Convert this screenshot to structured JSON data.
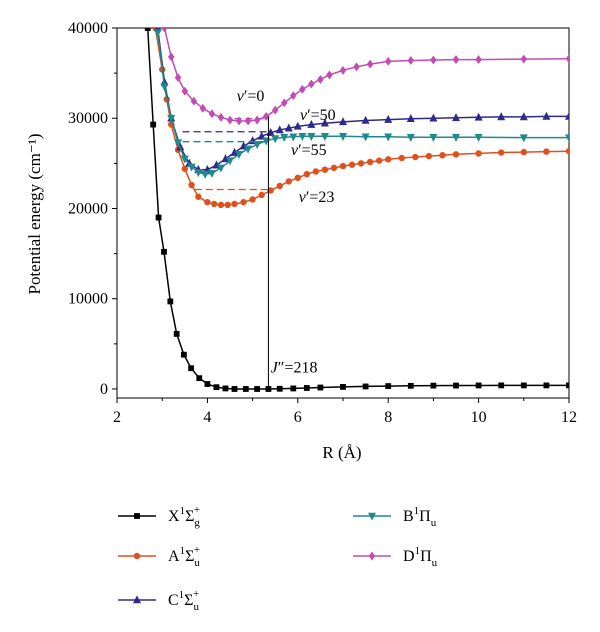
{
  "chart_data": {
    "type": "line",
    "xlabel": "R (Å)",
    "ylabel": "Potential energy (cm⁻¹)",
    "xlim": [
      2,
      12
    ],
    "ylim": [
      -1000,
      40000
    ],
    "xticks": [
      "2",
      "4",
      "6",
      "8",
      "10",
      "12"
    ],
    "yticks": [
      "0",
      "10000",
      "20000",
      "30000",
      "40000"
    ],
    "grid": false,
    "legend_position": "bottom",
    "series": [
      {
        "name": "X¹Σg⁺",
        "name_main": "X",
        "name_sup": "1",
        "name_sym": "Σ",
        "name_sub": "g",
        "name_sup2": "+",
        "color": "#000000",
        "marker": "square",
        "x": [
          2.68,
          2.8,
          2.92,
          3.04,
          3.18,
          3.32,
          3.48,
          3.64,
          3.82,
          4.0,
          4.2,
          4.4,
          4.6,
          4.85,
          5.1,
          5.35,
          5.6,
          5.9,
          6.2,
          6.5,
          7.0,
          7.5,
          8.0,
          8.5,
          9.0,
          9.5,
          10.0,
          10.5,
          11.0,
          11.5,
          12.0
        ],
        "y": [
          40000,
          29300,
          19000,
          15200,
          9700,
          6100,
          3800,
          2300,
          1200,
          550,
          200,
          60,
          0,
          0,
          0,
          0,
          20,
          60,
          110,
          160,
          230,
          280,
          320,
          350,
          370,
          380,
          390,
          395,
          395,
          395,
          400
        ]
      },
      {
        "name": "A¹Σu⁺",
        "name_main": "A",
        "name_sup": "1",
        "name_sym": "Σ",
        "name_sub": "u",
        "name_sup2": "+",
        "color": "#e0501c",
        "marker": "circle",
        "x": [
          2.85,
          3.0,
          3.1,
          3.2,
          3.35,
          3.5,
          3.65,
          3.8,
          4.0,
          4.15,
          4.3,
          4.45,
          4.6,
          4.8,
          5.0,
          5.2,
          5.4,
          5.6,
          5.8,
          6.0,
          6.2,
          6.4,
          6.6,
          6.8,
          7.0,
          7.2,
          7.4,
          7.6,
          7.8,
          8.0,
          8.3,
          8.6,
          8.9,
          9.2,
          9.5,
          10.0,
          10.5,
          11.0,
          11.5,
          12.0
        ],
        "y": [
          40000,
          35400,
          32100,
          29300,
          26500,
          24400,
          22600,
          21300,
          20700,
          20500,
          20400,
          20400,
          20500,
          20700,
          21000,
          21500,
          22000,
          22500,
          23000,
          23400,
          23800,
          24100,
          24300,
          24500,
          24700,
          24850,
          25000,
          25150,
          25300,
          25450,
          25600,
          25700,
          25800,
          25900,
          26000,
          26100,
          26200,
          26250,
          26300,
          26350
        ]
      },
      {
        "name": "C¹Σu⁺",
        "name_main": "C",
        "name_sup": "1",
        "name_sym": "Σ",
        "name_sub": "u",
        "name_sup2": "+",
        "color": "#2e2a8c",
        "marker": "triangle-up",
        "x": [
          2.9,
          3.05,
          3.2,
          3.4,
          3.6,
          3.8,
          4.0,
          4.2,
          4.4,
          4.6,
          4.8,
          5.0,
          5.2,
          5.4,
          5.6,
          5.8,
          6.0,
          6.3,
          6.6,
          7.0,
          7.5,
          8.0,
          8.5,
          9.0,
          9.5,
          10.0,
          10.5,
          11.0,
          11.5,
          12.0
        ],
        "y": [
          40000,
          34000,
          30000,
          26800,
          25000,
          24300,
          24300,
          24800,
          25500,
          26200,
          26900,
          27500,
          28000,
          28400,
          28700,
          28900,
          29100,
          29300,
          29450,
          29600,
          29750,
          29850,
          29950,
          30000,
          30050,
          30100,
          30150,
          30150,
          30200,
          30200
        ]
      },
      {
        "name": "B¹Πu",
        "name_main": "B",
        "name_sup": "1",
        "name_sym": "Π",
        "name_sub": "u",
        "name_sup2": "",
        "color": "#1f8a8c",
        "marker": "triangle-down",
        "x": [
          2.9,
          3.05,
          3.2,
          3.35,
          3.5,
          3.65,
          3.8,
          3.95,
          4.1,
          4.3,
          4.5,
          4.7,
          4.9,
          5.1,
          5.3,
          5.5,
          5.7,
          5.9,
          6.1,
          6.3,
          6.6,
          7.0,
          7.5,
          8.0,
          8.5,
          9.0,
          9.5,
          10.0,
          11.0,
          12.0
        ],
        "y": [
          39500,
          33500,
          30000,
          27300,
          25500,
          24600,
          24000,
          23800,
          23900,
          24500,
          25300,
          26000,
          26600,
          27100,
          27500,
          27750,
          27900,
          27950,
          28000,
          28000,
          28000,
          28000,
          27950,
          27950,
          27900,
          27900,
          27900,
          27900,
          27850,
          27850
        ]
      },
      {
        "name": "D¹Πu",
        "name_main": "D",
        "name_sup": "1",
        "name_sym": "Π",
        "name_sub": "u",
        "name_sup2": "",
        "color": "#c24bb4",
        "marker": "diamond",
        "x": [
          3.05,
          3.2,
          3.35,
          3.5,
          3.7,
          3.9,
          4.1,
          4.3,
          4.5,
          4.7,
          4.9,
          5.1,
          5.3,
          5.5,
          5.7,
          5.9,
          6.1,
          6.3,
          6.5,
          6.7,
          7.0,
          7.3,
          7.6,
          8.0,
          8.5,
          9.0,
          9.5,
          10.0,
          11.0,
          12.0
        ],
        "y": [
          40000,
          36800,
          34500,
          33000,
          31900,
          31100,
          30500,
          30100,
          29800,
          29700,
          29700,
          29800,
          30200,
          30900,
          31700,
          32500,
          33200,
          33800,
          34300,
          34800,
          35300,
          35700,
          36000,
          36300,
          36400,
          36450,
          36500,
          36500,
          36550,
          36600
        ]
      }
    ],
    "levels": [
      {
        "label_prefix": "v",
        "label_suffix": "′=0",
        "series": 4,
        "y": 29950,
        "x1": 4.6,
        "x2": 5.33
      },
      {
        "label_prefix": "v",
        "label_suffix": "′=50",
        "series": 2,
        "y": 28500,
        "x1": 3.45,
        "x2": 5.33
      },
      {
        "label_prefix": "v",
        "label_suffix": "′=55",
        "series": 3,
        "y": 27400,
        "x1": 3.45,
        "x2": 5.33
      },
      {
        "label_prefix": "v",
        "label_suffix": "′=23",
        "series": 1,
        "y": 22100,
        "x1": 3.72,
        "x2": 5.33
      }
    ],
    "vertical_line": {
      "x": 5.35,
      "y_from": 0,
      "y_to": 30200
    },
    "annotations": [
      {
        "text_prefix": "v",
        "text_suffix": "′=0",
        "x": 4.65,
        "y": 31900
      },
      {
        "text_prefix": "v",
        "text_suffix": "′=50",
        "x": 6.05,
        "y": 29800
      },
      {
        "text_prefix": "v",
        "text_suffix": "′=55",
        "x": 5.85,
        "y": 25900
      },
      {
        "text_prefix": "v",
        "text_suffix": "′=23",
        "x": 6.02,
        "y": 20700
      },
      {
        "text_prefix": "J",
        "text_suffix": "″=218",
        "x": 5.4,
        "y": 1800
      }
    ]
  }
}
